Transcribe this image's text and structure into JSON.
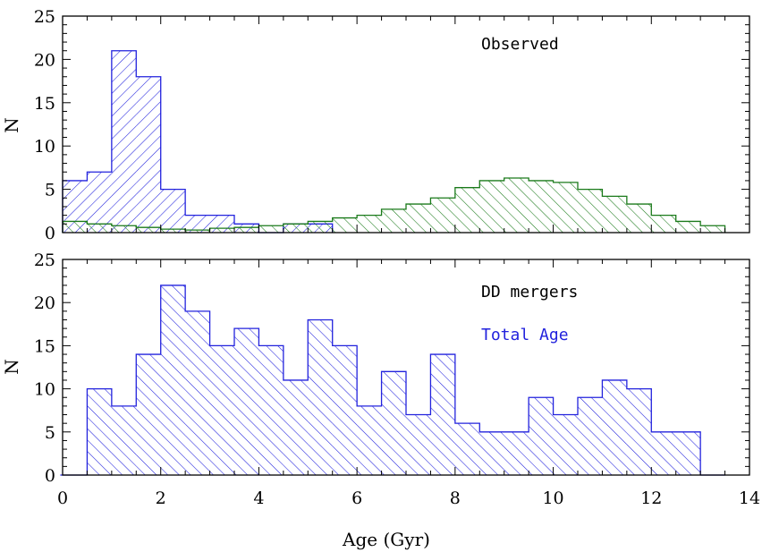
{
  "chart_data": [
    {
      "type": "bar",
      "panel": "top",
      "bin_width": 0.5,
      "xlim": [
        0,
        14
      ],
      "ylim": [
        0,
        25
      ],
      "xlabel": "Age (Gyr)",
      "ylabel": "N",
      "x_ticks": [
        "0",
        "2",
        "4",
        "6",
        "8",
        "10",
        "12",
        "14"
      ],
      "y_ticks": [
        "0",
        "5",
        "10",
        "15",
        "20",
        "25"
      ],
      "annotations": [
        {
          "text": "Observed",
          "color": "#000000"
        }
      ],
      "series": [
        {
          "name": "observed-blue",
          "color": "#2222dd",
          "hatch": "diagonal-forward",
          "bin_starts": [
            0,
            0.5,
            1.0,
            1.5,
            2.0,
            2.5,
            3.0,
            3.5,
            4.0,
            4.5,
            5.0
          ],
          "values": [
            6,
            7,
            21,
            18,
            5,
            2,
            2,
            1,
            0,
            1,
            1
          ]
        },
        {
          "name": "observed-green",
          "color": "#1a7a1a",
          "hatch": "diagonal-back",
          "bin_starts": [
            0,
            0.5,
            1.0,
            1.5,
            2.0,
            2.5,
            3.0,
            3.5,
            4.0,
            4.5,
            5.0,
            5.5,
            6.0,
            6.5,
            7.0,
            7.5,
            8.0,
            8.5,
            9.0,
            9.5,
            10.0,
            10.5,
            11.0,
            11.5,
            12.0,
            12.5,
            13.0
          ],
          "values": [
            1.3,
            1.0,
            0.8,
            0.6,
            0.4,
            0.3,
            0.5,
            0.6,
            0.8,
            1.0,
            1.3,
            1.7,
            2.0,
            2.7,
            3.3,
            4.0,
            5.2,
            6.0,
            6.3,
            6.0,
            5.8,
            5.0,
            4.2,
            3.3,
            2.0,
            1.3,
            0.8
          ]
        }
      ]
    },
    {
      "type": "bar",
      "panel": "bottom",
      "bin_width": 0.5,
      "xlim": [
        0,
        14
      ],
      "ylim": [
        0,
        25
      ],
      "xlabel": "Age (Gyr)",
      "ylabel": "N",
      "x_ticks": [
        "0",
        "2",
        "4",
        "6",
        "8",
        "10",
        "12",
        "14"
      ],
      "y_ticks": [
        "0",
        "5",
        "10",
        "15",
        "20",
        "25"
      ],
      "annotations": [
        {
          "text": "DD mergers",
          "color": "#000000"
        },
        {
          "text": "Total Age",
          "color": "#2222dd"
        }
      ],
      "series": [
        {
          "name": "dd-mergers-total-age",
          "color": "#2222dd",
          "hatch": "diagonal-back",
          "bin_starts": [
            0.5,
            1.0,
            1.5,
            2.0,
            2.5,
            3.0,
            3.5,
            4.0,
            4.5,
            5.0,
            5.5,
            6.0,
            6.5,
            7.0,
            7.5,
            8.0,
            8.5,
            9.0,
            9.5,
            10.0,
            10.5,
            11.0,
            11.5,
            12.0,
            12.5
          ],
          "values": [
            10,
            8,
            14,
            22,
            19,
            15,
            17,
            15,
            11,
            18,
            15,
            8,
            12,
            7,
            14,
            6,
            5,
            5,
            9,
            7,
            9,
            11,
            10,
            5,
            5
          ]
        }
      ]
    }
  ]
}
